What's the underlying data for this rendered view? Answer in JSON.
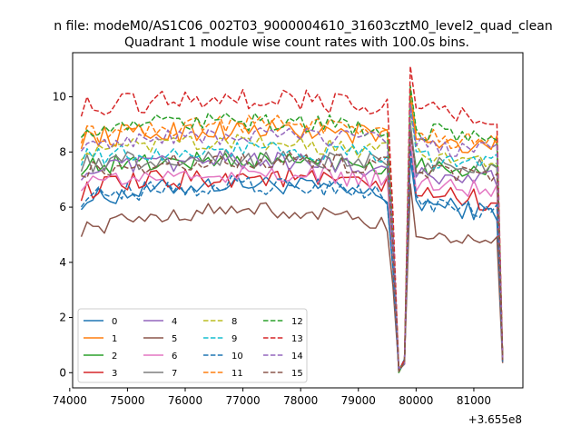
{
  "suptitle": "n file: modeM0/AS1C06_002T03_9000004610_31603cztM0_level2_quad_clean",
  "chart_data": {
    "type": "line",
    "title": "Quadrant 1 module wise count rates with 100.0s bins.",
    "xlabel": "",
    "ylabel": "",
    "x_offset_label": "+3.655e8",
    "xlim": [
      74050,
      81850
    ],
    "ylim": [
      -0.55,
      11.6
    ],
    "xticks": [
      74000,
      75000,
      76000,
      77000,
      78000,
      79000,
      80000,
      81000
    ],
    "xtick_labels": [
      "74000",
      "75000",
      "76000",
      "77000",
      "78000",
      "79000",
      "80000",
      "81000"
    ],
    "yticks": [
      0,
      2,
      4,
      6,
      8,
      10
    ],
    "ytick_labels": [
      "0",
      "2",
      "4",
      "6",
      "8",
      "10"
    ],
    "grid": false,
    "legend_position": "lower-left",
    "legend_columns": 4,
    "x_start": 74200,
    "x_step": 100,
    "dip_indices": [
      54,
      55,
      56,
      57
    ],
    "edge_index": 73,
    "dip_profile": [
      4.5,
      0.0,
      0.3,
      8.0
    ],
    "series": [
      {
        "name": "0",
        "color": "#1f77b4",
        "dash": false,
        "base": 6.25,
        "amp": 0.35,
        "trend": 0.6,
        "end": 0.45
      },
      {
        "name": "1",
        "color": "#ff7f0e",
        "dash": false,
        "base": 8.5,
        "amp": 0.4,
        "trend": 0.3,
        "end": 0.5
      },
      {
        "name": "2",
        "color": "#2ca02c",
        "dash": false,
        "base": 7.5,
        "amp": 0.35,
        "trend": 0.2,
        "end": 0.45
      },
      {
        "name": "3",
        "color": "#d62728",
        "dash": false,
        "base": 6.6,
        "amp": 0.4,
        "trend": 0.5,
        "end": 0.4
      },
      {
        "name": "4",
        "color": "#9467bd",
        "dash": false,
        "base": 7.3,
        "amp": 0.35,
        "trend": 0.4,
        "end": 0.45
      },
      {
        "name": "5",
        "color": "#8c564b",
        "dash": false,
        "base": 5.2,
        "amp": 0.3,
        "trend": 0.7,
        "end": 0.35
      },
      {
        "name": "6",
        "color": "#e377c2",
        "dash": false,
        "base": 6.9,
        "amp": 0.35,
        "trend": 0.3,
        "end": 0.4
      },
      {
        "name": "7",
        "color": "#7f7f7f",
        "dash": false,
        "base": 7.6,
        "amp": 0.35,
        "trend": 0.2,
        "end": 0.45
      },
      {
        "name": "8",
        "color": "#bcbd22",
        "dash": true,
        "base": 8.0,
        "amp": 0.35,
        "trend": 0.3,
        "end": 0.5
      },
      {
        "name": "9",
        "color": "#17becf",
        "dash": true,
        "base": 7.8,
        "amp": 0.35,
        "trend": 0.3,
        "end": 0.5
      },
      {
        "name": "10",
        "color": "#1f77b4",
        "dash": true,
        "base": 6.3,
        "amp": 0.35,
        "trend": 0.5,
        "end": 0.4
      },
      {
        "name": "11",
        "color": "#ff7f0e",
        "dash": true,
        "base": 8.6,
        "amp": 0.35,
        "trend": 0.4,
        "end": 0.5
      },
      {
        "name": "12",
        "color": "#2ca02c",
        "dash": true,
        "base": 8.8,
        "amp": 0.35,
        "trend": 0.3,
        "end": 0.5
      },
      {
        "name": "13",
        "color": "#d62728",
        "dash": true,
        "base": 9.6,
        "amp": 0.4,
        "trend": 0.3,
        "end": 0.55
      },
      {
        "name": "14",
        "color": "#9467bd",
        "dash": true,
        "base": 8.3,
        "amp": 0.35,
        "trend": 0.3,
        "end": 0.5
      },
      {
        "name": "15",
        "color": "#8c564b",
        "dash": true,
        "base": 7.4,
        "amp": 0.35,
        "trend": 0.3,
        "end": 0.45
      }
    ]
  }
}
